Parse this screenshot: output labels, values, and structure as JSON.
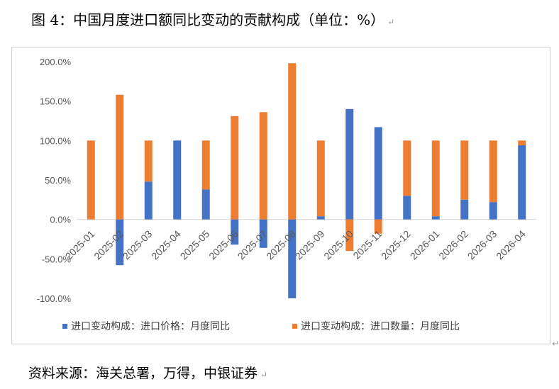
{
  "figure": {
    "title": "图 4：中国月度进口额同比变动的贡献构成（单位：%）",
    "source": "资料来源：海关总署，万得，中银证券",
    "colors": {
      "price": "#4472c4",
      "quantity": "#ed7d31",
      "axis": "#d9d9d9",
      "text": "#595959"
    }
  },
  "chart_data": {
    "type": "bar",
    "stacked": true,
    "categories": [
      "2025-01",
      "2025-02",
      "2025-03",
      "2025-04",
      "2025-05",
      "2025-06",
      "2025-07",
      "2025-08",
      "2025-09",
      "2025-10",
      "2025-11",
      "2025-12",
      "2026-01",
      "2026-02",
      "2026-03",
      "2026-04"
    ],
    "series": [
      {
        "name": "进口变动构成：进口价格：月度同比",
        "color": "#4472c4",
        "values": [
          0,
          -58,
          48,
          100,
          38,
          -32,
          -36,
          -100,
          4,
          140,
          117,
          30,
          4,
          25,
          22,
          94
        ]
      },
      {
        "name": "进口变动构成：进口数量：月度同比",
        "color": "#ed7d31",
        "values": [
          100,
          158,
          52,
          0,
          62,
          131,
          136,
          198,
          96,
          -40,
          -18,
          70,
          96,
          75,
          78,
          6
        ]
      }
    ],
    "yticks": [
      "200.0%",
      "150.0%",
      "100.0%",
      "50.0%",
      "0.0%",
      "-50.0%",
      "-100.0%"
    ],
    "ylim": [
      -100,
      200
    ],
    "legend": "bottom",
    "grid": false
  }
}
